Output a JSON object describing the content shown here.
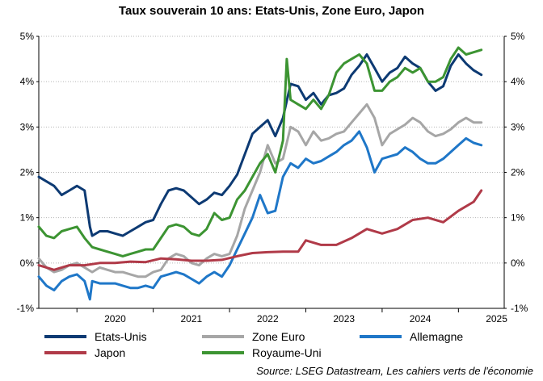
{
  "title": "Taux souverain 10 ans: Etats-Unis, Zone Euro, Japon",
  "source": "Source: LSEG Datastream, Les cahiers verts de l'économie",
  "chart_data": {
    "type": "line",
    "title": "Taux souverain 10 ans: Etats-Unis, Zone Euro, Japon",
    "xlabel": "",
    "ylabel": "",
    "xlim": [
      2019.5,
      2025.6
    ],
    "ylim": [
      -1,
      5
    ],
    "y_ticks": [
      -1,
      0,
      1,
      2,
      3,
      4,
      5
    ],
    "y_tick_labels": [
      "-1%",
      "0%",
      "1%",
      "2%",
      "3%",
      "4%",
      "5%"
    ],
    "secondary_y_ticks": true,
    "x_ticks": [
      2020,
      2021,
      2022,
      2023,
      2024,
      2025
    ],
    "x_tick_labels": [
      "2020",
      "2021",
      "2022",
      "2023",
      "2024",
      "2025"
    ],
    "grid": "horizontal-dotted",
    "legend_position": "bottom",
    "series": [
      {
        "name": "Etats-Unis",
        "color": "#0d3a73",
        "x": [
          2019.5,
          2019.6,
          2019.7,
          2019.8,
          2019.9,
          2020.0,
          2020.1,
          2020.17,
          2020.2,
          2020.3,
          2020.4,
          2020.5,
          2020.6,
          2020.7,
          2020.8,
          2020.9,
          2021.0,
          2021.1,
          2021.2,
          2021.3,
          2021.4,
          2021.5,
          2021.6,
          2021.7,
          2021.8,
          2021.9,
          2022.0,
          2022.1,
          2022.2,
          2022.3,
          2022.4,
          2022.5,
          2022.6,
          2022.7,
          2022.8,
          2022.9,
          2023.0,
          2023.1,
          2023.2,
          2023.3,
          2023.4,
          2023.5,
          2023.6,
          2023.7,
          2023.8,
          2023.9,
          2024.0,
          2024.1,
          2024.2,
          2024.3,
          2024.4,
          2024.5,
          2024.6,
          2024.7,
          2024.8,
          2024.9,
          2025.0,
          2025.1,
          2025.2,
          2025.3
        ],
        "values": [
          1.9,
          1.8,
          1.7,
          1.5,
          1.6,
          1.7,
          1.6,
          0.8,
          0.6,
          0.7,
          0.7,
          0.65,
          0.6,
          0.7,
          0.8,
          0.9,
          0.95,
          1.3,
          1.6,
          1.65,
          1.6,
          1.45,
          1.3,
          1.4,
          1.55,
          1.5,
          1.7,
          1.95,
          2.4,
          2.85,
          3.0,
          3.15,
          2.8,
          3.2,
          3.95,
          3.9,
          3.6,
          3.75,
          3.5,
          3.7,
          3.75,
          3.85,
          4.15,
          4.35,
          4.6,
          4.3,
          4.0,
          4.2,
          4.3,
          4.55,
          4.4,
          4.3,
          4.0,
          3.8,
          3.9,
          4.35,
          4.6,
          4.4,
          4.25,
          4.15
        ]
      },
      {
        "name": "Zone Euro",
        "color": "#a6a6a6",
        "x": [
          2019.5,
          2019.6,
          2019.7,
          2019.8,
          2019.9,
          2020.0,
          2020.1,
          2020.2,
          2020.3,
          2020.4,
          2020.5,
          2020.6,
          2020.7,
          2020.8,
          2020.9,
          2021.0,
          2021.1,
          2021.2,
          2021.3,
          2021.4,
          2021.5,
          2021.6,
          2021.7,
          2021.8,
          2021.9,
          2022.0,
          2022.1,
          2022.2,
          2022.3,
          2022.4,
          2022.5,
          2022.6,
          2022.7,
          2022.8,
          2022.9,
          2023.0,
          2023.1,
          2023.2,
          2023.3,
          2023.4,
          2023.5,
          2023.6,
          2023.7,
          2023.8,
          2023.9,
          2024.0,
          2024.1,
          2024.2,
          2024.3,
          2024.4,
          2024.5,
          2024.6,
          2024.7,
          2024.8,
          2024.9,
          2025.0,
          2025.1,
          2025.2,
          2025.3
        ],
        "values": [
          0.1,
          -0.1,
          -0.2,
          -0.15,
          -0.05,
          0.0,
          -0.1,
          -0.2,
          -0.1,
          -0.15,
          -0.2,
          -0.2,
          -0.25,
          -0.3,
          -0.3,
          -0.2,
          -0.15,
          0.1,
          0.2,
          0.15,
          0.0,
          -0.05,
          0.1,
          0.2,
          0.15,
          0.2,
          0.6,
          1.2,
          1.6,
          2.0,
          2.6,
          2.2,
          2.3,
          3.0,
          2.9,
          2.6,
          2.9,
          2.7,
          2.75,
          2.85,
          2.9,
          3.1,
          3.3,
          3.5,
          3.2,
          2.6,
          2.85,
          2.95,
          3.05,
          3.2,
          3.1,
          2.9,
          2.8,
          2.85,
          2.95,
          3.1,
          3.2,
          3.1,
          3.1
        ]
      },
      {
        "name": "Allemagne",
        "color": "#1f77c8",
        "x": [
          2019.5,
          2019.6,
          2019.7,
          2019.8,
          2019.9,
          2020.0,
          2020.1,
          2020.17,
          2020.2,
          2020.3,
          2020.4,
          2020.5,
          2020.6,
          2020.7,
          2020.8,
          2020.9,
          2021.0,
          2021.1,
          2021.2,
          2021.3,
          2021.4,
          2021.5,
          2021.6,
          2021.7,
          2021.8,
          2021.9,
          2022.0,
          2022.1,
          2022.2,
          2022.3,
          2022.4,
          2022.5,
          2022.6,
          2022.7,
          2022.8,
          2022.9,
          2023.0,
          2023.1,
          2023.2,
          2023.3,
          2023.4,
          2023.5,
          2023.6,
          2023.7,
          2023.8,
          2023.9,
          2024.0,
          2024.1,
          2024.2,
          2024.3,
          2024.4,
          2024.5,
          2024.6,
          2024.7,
          2024.8,
          2024.9,
          2025.0,
          2025.1,
          2025.2,
          2025.3
        ],
        "values": [
          -0.3,
          -0.5,
          -0.6,
          -0.4,
          -0.3,
          -0.25,
          -0.4,
          -0.8,
          -0.4,
          -0.45,
          -0.45,
          -0.45,
          -0.5,
          -0.55,
          -0.55,
          -0.5,
          -0.55,
          -0.3,
          -0.25,
          -0.2,
          -0.25,
          -0.35,
          -0.45,
          -0.3,
          -0.2,
          -0.3,
          -0.05,
          0.3,
          0.65,
          1.0,
          1.5,
          1.1,
          1.15,
          1.9,
          2.2,
          2.1,
          2.3,
          2.2,
          2.25,
          2.35,
          2.45,
          2.6,
          2.7,
          2.9,
          2.55,
          2.0,
          2.3,
          2.35,
          2.4,
          2.55,
          2.45,
          2.3,
          2.2,
          2.2,
          2.3,
          2.45,
          2.6,
          2.75,
          2.65,
          2.6
        ]
      },
      {
        "name": "Japon",
        "color": "#b03a48",
        "x": [
          2019.5,
          2019.7,
          2019.9,
          2020.1,
          2020.3,
          2020.5,
          2020.7,
          2020.9,
          2021.1,
          2021.3,
          2021.5,
          2021.7,
          2021.9,
          2022.1,
          2022.3,
          2022.5,
          2022.7,
          2022.9,
          2023.0,
          2023.2,
          2023.4,
          2023.6,
          2023.8,
          2024.0,
          2024.2,
          2024.4,
          2024.6,
          2024.8,
          2025.0,
          2025.2,
          2025.3
        ],
        "values": [
          -0.05,
          -0.15,
          -0.05,
          -0.05,
          0.0,
          0.0,
          0.03,
          0.02,
          0.1,
          0.08,
          0.05,
          0.05,
          0.07,
          0.15,
          0.22,
          0.24,
          0.25,
          0.25,
          0.5,
          0.4,
          0.4,
          0.55,
          0.75,
          0.65,
          0.75,
          0.95,
          1.0,
          0.9,
          1.15,
          1.35,
          1.6
        ]
      },
      {
        "name": "Royaume-Uni",
        "color": "#3c9432",
        "x": [
          2019.5,
          2019.6,
          2019.7,
          2019.8,
          2019.9,
          2020.0,
          2020.1,
          2020.2,
          2020.3,
          2020.4,
          2020.5,
          2020.6,
          2020.7,
          2020.8,
          2020.9,
          2021.0,
          2021.1,
          2021.2,
          2021.3,
          2021.4,
          2021.5,
          2021.6,
          2021.7,
          2021.8,
          2021.9,
          2022.0,
          2022.1,
          2022.2,
          2022.3,
          2022.4,
          2022.5,
          2022.6,
          2022.7,
          2022.75,
          2022.8,
          2022.9,
          2023.0,
          2023.1,
          2023.2,
          2023.3,
          2023.4,
          2023.5,
          2023.6,
          2023.7,
          2023.8,
          2023.9,
          2024.0,
          2024.1,
          2024.2,
          2024.3,
          2024.4,
          2024.5,
          2024.6,
          2024.7,
          2024.8,
          2024.9,
          2025.0,
          2025.1,
          2025.2,
          2025.3
        ],
        "values": [
          0.8,
          0.6,
          0.55,
          0.7,
          0.75,
          0.8,
          0.55,
          0.35,
          0.3,
          0.25,
          0.2,
          0.15,
          0.2,
          0.25,
          0.3,
          0.3,
          0.55,
          0.8,
          0.85,
          0.8,
          0.65,
          0.6,
          0.75,
          1.1,
          0.95,
          1.0,
          1.4,
          1.6,
          1.9,
          2.2,
          2.4,
          2.0,
          2.7,
          4.5,
          3.6,
          3.5,
          3.4,
          3.6,
          3.4,
          3.7,
          4.2,
          4.4,
          4.5,
          4.6,
          4.4,
          3.8,
          3.8,
          4.0,
          4.1,
          4.3,
          4.2,
          4.3,
          4.0,
          4.0,
          4.1,
          4.5,
          4.75,
          4.6,
          4.65,
          4.7
        ]
      }
    ]
  }
}
